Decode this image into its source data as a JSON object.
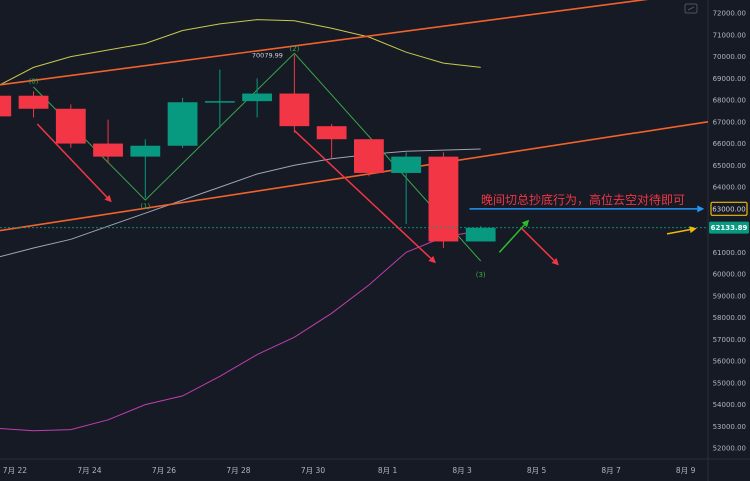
{
  "chart_data": {
    "type": "candlestick",
    "y_axis": {
      "ticks": [
        "72000.00",
        "71000.00",
        "70000.00",
        "69000.00",
        "68000.00",
        "67000.00",
        "66000.00",
        "65000.00",
        "64000.00",
        "63000.00",
        "62000.00",
        "61000.00",
        "60000.00",
        "59000.00",
        "58000.00",
        "57000.00",
        "56000.00",
        "55000.00",
        "54000.00",
        "53000.00",
        "52000.00"
      ],
      "range": [
        51500,
        72600
      ],
      "grid": false
    },
    "x_axis": {
      "ticks": [
        {
          "label": "7月 22",
          "day": 22
        },
        {
          "label": "7月 24",
          "day": 24
        },
        {
          "label": "7月 26",
          "day": 26
        },
        {
          "label": "7月 28",
          "day": 28
        },
        {
          "label": "7月 30",
          "day": 30
        },
        {
          "label": "8月 1",
          "day": 32
        },
        {
          "label": "8月 3",
          "day": 34
        },
        {
          "label": "8月 5",
          "day": 36
        },
        {
          "label": "8月 7",
          "day": 38
        },
        {
          "label": "8月 9",
          "day": 40
        }
      ],
      "range": [
        21.6,
        40.6
      ]
    },
    "candles": [
      {
        "day": 21.5,
        "o": 68200,
        "h": 68500,
        "l": 67100,
        "c": 67250
      },
      {
        "day": 22.5,
        "o": 68200,
        "h": 68400,
        "l": 67200,
        "c": 67600
      },
      {
        "day": 23.5,
        "o": 67600,
        "h": 67800,
        "l": 65800,
        "c": 66000
      },
      {
        "day": 24.5,
        "o": 66000,
        "h": 67100,
        "l": 65100,
        "c": 65400
      },
      {
        "day": 25.5,
        "o": 65400,
        "h": 66200,
        "l": 63500,
        "c": 65900
      },
      {
        "day": 26.5,
        "o": 65900,
        "h": 68100,
        "l": 65800,
        "c": 67900
      },
      {
        "day": 27.5,
        "o": 67900,
        "h": 69400,
        "l": 66700,
        "c": 67950
      },
      {
        "day": 28.5,
        "o": 67950,
        "h": 69000,
        "l": 67200,
        "c": 68300
      },
      {
        "day": 29.5,
        "o": 68300,
        "h": 70080,
        "l": 66500,
        "c": 66800
      },
      {
        "day": 30.5,
        "o": 66800,
        "h": 66900,
        "l": 65300,
        "c": 66200
      },
      {
        "day": 31.5,
        "o": 66200,
        "h": 66200,
        "l": 64500,
        "c": 64650
      },
      {
        "day": 32.5,
        "o": 64650,
        "h": 65600,
        "l": 62300,
        "c": 65400
      },
      {
        "day": 33.5,
        "o": 65400,
        "h": 65600,
        "l": 61200,
        "c": 61500
      },
      {
        "day": 34.5,
        "o": 61500,
        "h": 62200,
        "l": 61500,
        "c": 62133
      }
    ],
    "bands": {
      "upper": [
        {
          "day": 21.6,
          "v": 68700
        },
        {
          "day": 22.5,
          "v": 69500
        },
        {
          "day": 23.5,
          "v": 70000
        },
        {
          "day": 24.5,
          "v": 70300
        },
        {
          "day": 25.5,
          "v": 70600
        },
        {
          "day": 26.5,
          "v": 71200
        },
        {
          "day": 27.5,
          "v": 71500
        },
        {
          "day": 28.5,
          "v": 71700
        },
        {
          "day": 29.5,
          "v": 71650
        },
        {
          "day": 30.5,
          "v": 71300
        },
        {
          "day": 31.5,
          "v": 70900
        },
        {
          "day": 32.5,
          "v": 70200
        },
        {
          "day": 33.5,
          "v": 69700
        },
        {
          "day": 34.5,
          "v": 69500
        }
      ],
      "middle": [
        {
          "day": 21.6,
          "v": 60800
        },
        {
          "day": 22.5,
          "v": 61200
        },
        {
          "day": 23.5,
          "v": 61600
        },
        {
          "day": 24.5,
          "v": 62200
        },
        {
          "day": 25.5,
          "v": 62800
        },
        {
          "day": 26.5,
          "v": 63400
        },
        {
          "day": 27.5,
          "v": 64000
        },
        {
          "day": 28.5,
          "v": 64600
        },
        {
          "day": 29.5,
          "v": 65000
        },
        {
          "day": 30.5,
          "v": 65300
        },
        {
          "day": 31.5,
          "v": 65500
        },
        {
          "day": 32.5,
          "v": 65650
        },
        {
          "day": 33.5,
          "v": 65700
        },
        {
          "day": 34.5,
          "v": 65750
        }
      ],
      "lower": [
        {
          "day": 21.6,
          "v": 52900
        },
        {
          "day": 22.5,
          "v": 52800
        },
        {
          "day": 23.5,
          "v": 52850
        },
        {
          "day": 24.5,
          "v": 53300
        },
        {
          "day": 25.5,
          "v": 54000
        },
        {
          "day": 26.5,
          "v": 54400
        },
        {
          "day": 27.5,
          "v": 55300
        },
        {
          "day": 28.5,
          "v": 56300
        },
        {
          "day": 29.5,
          "v": 57100
        },
        {
          "day": 30.5,
          "v": 58200
        },
        {
          "day": 31.5,
          "v": 59500
        },
        {
          "day": 32.5,
          "v": 61000
        },
        {
          "day": 33.5,
          "v": 61700
        },
        {
          "day": 34.5,
          "v": 62000
        }
      ]
    },
    "channel": {
      "upper_line": [
        {
          "day": 21.6,
          "v": 68700
        },
        {
          "day": 40.6,
          "v": 73000
        }
      ],
      "lower_line": [
        {
          "day": 21.6,
          "v": 62000
        },
        {
          "day": 40.6,
          "v": 67000
        }
      ]
    },
    "wave_path": [
      {
        "day": 22.5,
        "v": 68600
      },
      {
        "day": 25.5,
        "v": 63400
      },
      {
        "day": 29.5,
        "v": 70150
      },
      {
        "day": 34.5,
        "v": 60600
      }
    ],
    "wave_labels": [
      {
        "text": "(0)",
        "day": 22.5,
        "v": 68900
      },
      {
        "text": "(1)",
        "day": 25.5,
        "v": 63150
      },
      {
        "text": "(2)",
        "day": 29.5,
        "v": 70400
      },
      {
        "text": "(3)",
        "day": 34.5,
        "v": 60000
      }
    ],
    "price_annotation": {
      "text": "70079.99",
      "day": 29.3,
      "v": 70080
    },
    "price_level": {
      "value": 62133.89,
      "label": "62133.89",
      "color": "#089981"
    },
    "target_level": {
      "value": 63000,
      "label": "63000.00",
      "box_color": "#f0b90b"
    },
    "annotation_text": "晚间切总抄底行为，高位去空对待即可",
    "annotation_color": "#f23645",
    "arrows": [
      {
        "color": "#f23645",
        "from": {
          "day": 22.6,
          "v": 66900
        },
        "to": {
          "day": 24.6,
          "v": 63300
        }
      },
      {
        "color": "#f23645",
        "from": {
          "day": 29.5,
          "v": 66600
        },
        "to": {
          "day": 33.3,
          "v": 60500
        }
      },
      {
        "color": "#f23645",
        "from": {
          "day": 35.6,
          "v": 62100
        },
        "to": {
          "day": 36.6,
          "v": 60400
        }
      },
      {
        "color": "#2dbd2d",
        "from": {
          "day": 35,
          "v": 61000
        },
        "to": {
          "day": 35.8,
          "v": 62500
        }
      },
      {
        "color": "#2196f3",
        "from": {
          "day": 34.2,
          "v": 63000
        },
        "to": {
          "day": 40.5,
          "v": 63000
        }
      },
      {
        "color": "#f0b90b",
        "from": {
          "day": 39.5,
          "v": 61850
        },
        "to": {
          "day": 40.3,
          "v": 62100
        }
      }
    ],
    "colors": {
      "background": "#161a25",
      "up": "#089981",
      "down": "#f23645",
      "upper_band": "#c9c94c",
      "middle_band": "#b9bccc",
      "lower_band": "#c03eae",
      "channel": "#f2622c",
      "wave": "#3aa84a",
      "axis_text": "#b2b5be"
    }
  }
}
